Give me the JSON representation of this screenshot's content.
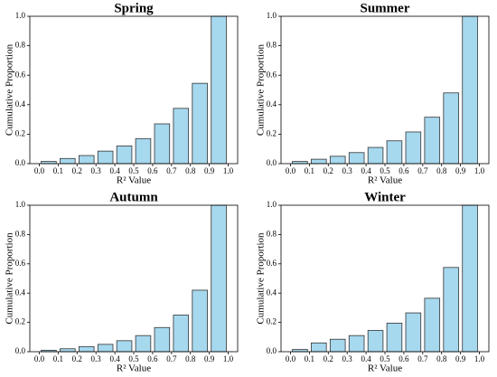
{
  "chart_data": [
    {
      "type": "histogram",
      "title": "Spring",
      "xlabel": "R² Value",
      "ylabel": "Cumulative Proportion",
      "bins": [
        0.0,
        0.1,
        0.2,
        0.3,
        0.4,
        0.5,
        0.6,
        0.7,
        0.8,
        0.9,
        1.0
      ],
      "values": [
        0.015,
        0.035,
        0.055,
        0.085,
        0.12,
        0.17,
        0.27,
        0.375,
        0.545,
        1.0
      ],
      "color": "#a6d8ee",
      "edgecolor": "#333333",
      "xlim": [
        -0.05,
        1.05
      ],
      "ylim": [
        0,
        1.0
      ],
      "xticks": [
        {
          "value": 0,
          "label": "0.0"
        },
        0.1,
        0.2,
        0.3,
        0.4,
        0.5,
        0.6,
        0.7,
        0.8,
        0.9,
        {
          "value": 1,
          "label": "1.0"
        }
      ],
      "yticks": [
        {
          "value": 0,
          "label": "0.0"
        },
        0.2,
        0.4,
        0.6,
        0.8,
        {
          "value": 1,
          "label": "1.0"
        }
      ]
    },
    {
      "type": "histogram",
      "title": "Summer",
      "xlabel": "R² Value",
      "ylabel": "Cumulative Proportion",
      "bins": [
        0.0,
        0.1,
        0.2,
        0.3,
        0.4,
        0.5,
        0.6,
        0.7,
        0.8,
        0.9,
        1.0
      ],
      "values": [
        0.015,
        0.03,
        0.05,
        0.075,
        0.11,
        0.155,
        0.215,
        0.315,
        0.48,
        1.0
      ],
      "color": "#a6d8ee",
      "edgecolor": "#333333",
      "xlim": [
        -0.05,
        1.05
      ],
      "ylim": [
        0,
        1.0
      ],
      "xticks": [
        {
          "value": 0,
          "label": "0.0"
        },
        0.1,
        0.2,
        0.3,
        0.4,
        0.5,
        0.6,
        0.7,
        0.8,
        0.9,
        {
          "value": 1,
          "label": "1.0"
        }
      ],
      "yticks": [
        {
          "value": 0,
          "label": "0.0"
        },
        0.2,
        0.4,
        0.6,
        0.8,
        {
          "value": 1,
          "label": "1.0"
        }
      ]
    },
    {
      "type": "histogram",
      "title": "Autumn",
      "xlabel": "R² Value",
      "ylabel": "Cumulative Proportion",
      "bins": [
        0.0,
        0.1,
        0.2,
        0.3,
        0.4,
        0.5,
        0.6,
        0.7,
        0.8,
        0.9,
        1.0
      ],
      "values": [
        0.01,
        0.02,
        0.035,
        0.05,
        0.075,
        0.11,
        0.165,
        0.25,
        0.42,
        1.0
      ],
      "color": "#a6d8ee",
      "edgecolor": "#333333",
      "xlim": [
        -0.05,
        1.05
      ],
      "ylim": [
        0,
        1.0
      ],
      "xticks": [
        {
          "value": 0,
          "label": "0.0"
        },
        0.1,
        0.2,
        0.3,
        0.4,
        0.5,
        0.6,
        0.7,
        0.8,
        0.9,
        {
          "value": 1,
          "label": "1.0"
        }
      ],
      "yticks": [
        {
          "value": 0,
          "label": "0.0"
        },
        0.2,
        0.4,
        0.6,
        0.8,
        {
          "value": 1,
          "label": "1.0"
        }
      ]
    },
    {
      "type": "histogram",
      "title": "Winter",
      "xlabel": "R² Value",
      "ylabel": "Cumulative Proportion",
      "bins": [
        0.0,
        0.1,
        0.2,
        0.3,
        0.4,
        0.5,
        0.6,
        0.7,
        0.8,
        0.9,
        1.0
      ],
      "values": [
        0.015,
        0.06,
        0.085,
        0.11,
        0.145,
        0.195,
        0.265,
        0.365,
        0.575,
        1.0
      ],
      "color": "#a6d8ee",
      "edgecolor": "#333333",
      "xlim": [
        -0.05,
        1.05
      ],
      "ylim": [
        0,
        1.0
      ],
      "xticks": [
        {
          "value": 0,
          "label": "0.0"
        },
        0.1,
        0.2,
        0.3,
        0.4,
        0.5,
        0.6,
        0.7,
        0.8,
        0.9,
        {
          "value": 1,
          "label": "1.0"
        }
      ],
      "yticks": [
        {
          "value": 0,
          "label": "0.0"
        },
        0.2,
        0.4,
        0.6,
        0.8,
        {
          "value": 1,
          "label": "1.0"
        }
      ]
    }
  ]
}
